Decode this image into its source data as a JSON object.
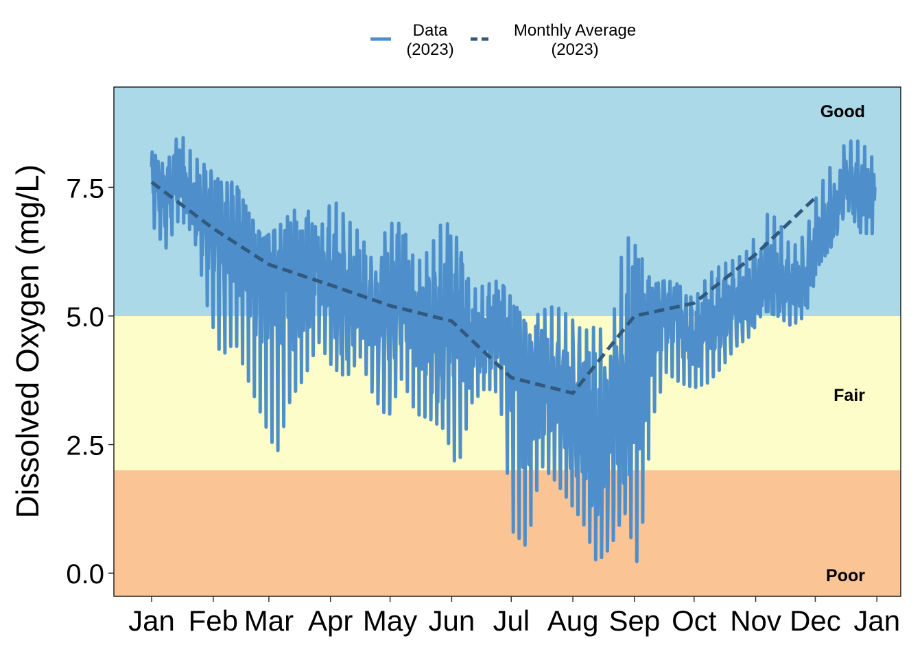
{
  "chart_data": {
    "type": "line",
    "xlabel": "",
    "ylabel": "Dissolved Oxygen (mg/L)",
    "x_tick_labels": [
      "Jan",
      "Feb",
      "Mar",
      "Apr",
      "May",
      "Jun",
      "Jul",
      "Aug",
      "Sep",
      "Oct",
      "Nov",
      "Dec",
      "Jan"
    ],
    "x_tick_dates": [
      "2023-01-01",
      "2023-02-01",
      "2023-03-01",
      "2023-04-01",
      "2023-05-01",
      "2023-06-01",
      "2023-07-01",
      "2023-08-01",
      "2023-09-01",
      "2023-10-01",
      "2023-11-01",
      "2023-12-01",
      "2024-01-01"
    ],
    "xlim": [
      "2022-12-13",
      "2024-01-13"
    ],
    "y_ticks": [
      0.0,
      2.5,
      5.0,
      7.5
    ],
    "y_tick_labels": [
      "0.0",
      "2.5",
      "5.0",
      "7.5"
    ],
    "ylim": [
      -0.45,
      9.45
    ],
    "grid": false,
    "legend_position": "top",
    "bands": [
      {
        "label": "Poor",
        "ymin": -0.45,
        "ymax": 2.0,
        "color": "#FBC495"
      },
      {
        "label": "Fair",
        "ymin": 2.0,
        "ymax": 5.0,
        "color": "#FDFDC9"
      },
      {
        "label": "Good",
        "ymin": 5.0,
        "ymax": 9.45,
        "color": "#ABD9E8"
      }
    ],
    "series": [
      {
        "name": "Data\n(2023)",
        "style": "solid",
        "color": "#4E8FCB",
        "x": [
          "2023-01-01",
          "2023-01-08",
          "2023-01-15",
          "2023-01-22",
          "2023-01-29",
          "2023-02-05",
          "2023-02-12",
          "2023-02-19",
          "2023-02-26",
          "2023-03-05",
          "2023-03-12",
          "2023-03-19",
          "2023-03-26",
          "2023-04-02",
          "2023-04-09",
          "2023-04-16",
          "2023-04-23",
          "2023-04-30",
          "2023-05-07",
          "2023-05-14",
          "2023-05-21",
          "2023-05-28",
          "2023-06-04",
          "2023-06-11",
          "2023-06-18",
          "2023-06-25",
          "2023-07-02",
          "2023-07-09",
          "2023-07-16",
          "2023-07-23",
          "2023-07-30",
          "2023-08-06",
          "2023-08-13",
          "2023-08-20",
          "2023-08-27",
          "2023-09-03",
          "2023-09-10",
          "2023-09-17",
          "2023-09-24",
          "2023-10-01",
          "2023-10-08",
          "2023-10-15",
          "2023-10-22",
          "2023-10-29",
          "2023-11-05",
          "2023-11-12",
          "2023-11-19",
          "2023-11-26",
          "2023-12-03",
          "2023-12-10",
          "2023-12-17",
          "2023-12-24",
          "2023-12-31"
        ],
        "mid": [
          7.7,
          7.3,
          7.9,
          7.2,
          6.9,
          6.5,
          6.6,
          6.1,
          5.7,
          5.5,
          5.6,
          5.8,
          5.9,
          5.5,
          5.3,
          5.4,
          5.0,
          5.1,
          5.6,
          5.0,
          4.8,
          4.6,
          5.3,
          4.4,
          4.6,
          4.8,
          4.1,
          3.5,
          3.6,
          3.4,
          3.2,
          3.1,
          2.6,
          2.9,
          3.2,
          4.3,
          4.9,
          5.1,
          4.9,
          4.6,
          4.9,
          5.0,
          5.2,
          5.3,
          5.8,
          5.6,
          5.5,
          5.7,
          6.5,
          7.0,
          7.6,
          7.3,
          7.5
        ],
        "high": [
          8.2,
          7.9,
          8.6,
          8.1,
          7.9,
          7.6,
          7.6,
          7.0,
          6.5,
          6.7,
          7.0,
          7.2,
          6.6,
          7.3,
          6.9,
          6.6,
          6.0,
          6.8,
          6.8,
          6.0,
          6.3,
          6.9,
          6.5,
          5.5,
          5.6,
          5.7,
          5.3,
          4.8,
          5.1,
          5.2,
          5.0,
          4.7,
          4.8,
          4.6,
          6.6,
          6.3,
          5.6,
          5.7,
          5.6,
          5.3,
          5.8,
          6.0,
          6.1,
          6.3,
          7.0,
          6.9,
          6.3,
          6.6,
          7.5,
          8.0,
          8.4,
          8.4,
          8.0
        ],
        "low": [
          6.8,
          6.3,
          6.9,
          6.6,
          5.2,
          4.2,
          4.5,
          3.7,
          3.0,
          2.3,
          3.4,
          3.8,
          4.5,
          4.0,
          3.8,
          4.2,
          3.4,
          3.0,
          3.8,
          3.1,
          3.0,
          2.8,
          2.0,
          3.3,
          3.6,
          3.5,
          0.8,
          0.5,
          2.1,
          1.8,
          1.4,
          1.0,
          0.2,
          0.5,
          1.2,
          0.1,
          3.0,
          3.9,
          3.7,
          3.6,
          3.7,
          4.0,
          4.4,
          4.6,
          5.1,
          5.0,
          4.8,
          5.0,
          6.0,
          6.4,
          7.1,
          6.6,
          6.6
        ]
      },
      {
        "name": "Monthly Average\n(2023)",
        "style": "dashed",
        "color": "#31587E",
        "x": [
          "2023-01-01",
          "2023-02-01",
          "2023-03-01",
          "2023-04-01",
          "2023-05-01",
          "2023-06-01",
          "2023-07-01",
          "2023-08-01",
          "2023-09-01",
          "2023-10-01",
          "2023-11-01",
          "2023-12-01"
        ],
        "values": [
          7.6,
          6.7,
          6.0,
          5.6,
          5.2,
          4.9,
          3.8,
          3.5,
          5.0,
          5.25,
          6.2,
          7.3
        ]
      }
    ],
    "colors": {
      "axis": "#000000",
      "panel_border": "#000000"
    }
  }
}
